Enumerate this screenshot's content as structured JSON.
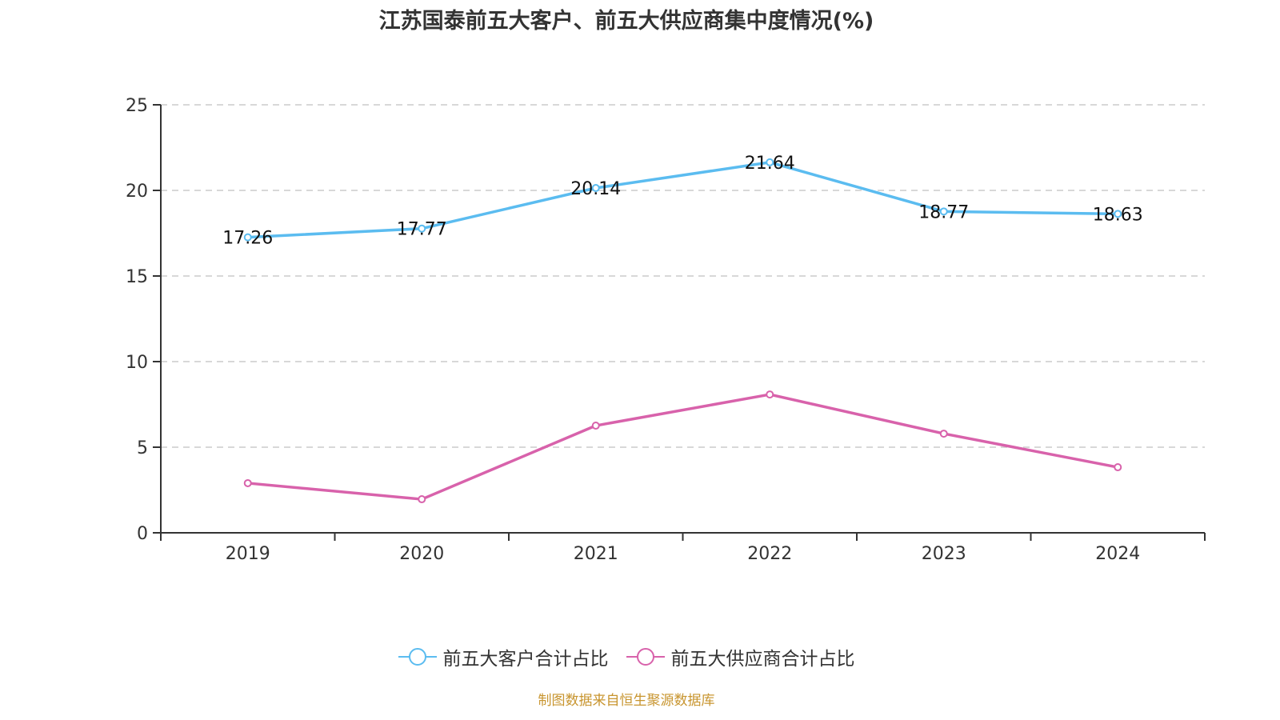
{
  "chart_data": {
    "type": "line",
    "title": "江苏国泰前五大客户、前五大供应商集中度情况(%)",
    "xlabel": "",
    "ylabel": "",
    "categories": [
      "2019",
      "2020",
      "2021",
      "2022",
      "2023",
      "2024"
    ],
    "ylim": [
      0,
      25
    ],
    "yticks": [
      0,
      5,
      10,
      15,
      20,
      25
    ],
    "grid": true,
    "legend_position": "bottom",
    "series": [
      {
        "name": "前五大客户合计占比",
        "color": "#5bbcf0",
        "values": [
          17.26,
          17.77,
          20.14,
          21.64,
          18.77,
          18.63
        ],
        "labels": [
          "17.26",
          "17.77",
          "20.14",
          "21.64",
          "18.77",
          "18.63"
        ],
        "show_labels": true
      },
      {
        "name": "前五大供应商合计占比",
        "color": "#d862ab",
        "values": [
          2.9,
          1.96,
          6.26,
          8.08,
          5.79,
          3.83
        ],
        "show_labels": false
      }
    ]
  },
  "footer": "制图数据来自恒生聚源数据库"
}
